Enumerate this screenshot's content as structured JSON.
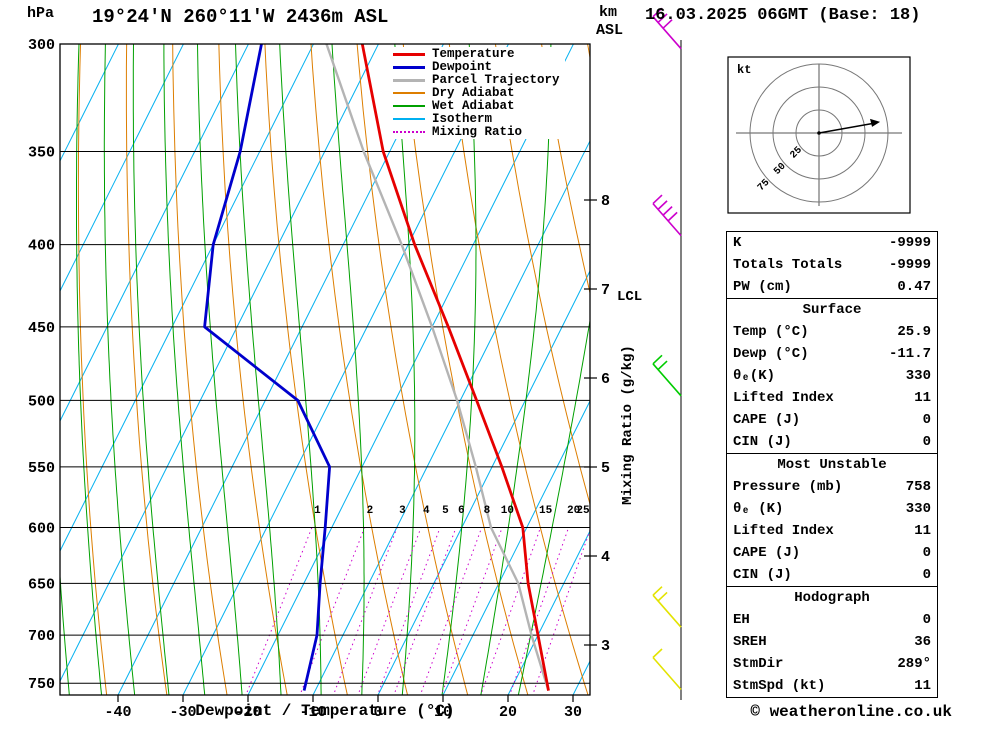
{
  "header": {
    "hpa_unit": "hPa",
    "title": "19°24'N 260°11'W 2436m ASL",
    "km_unit": "km",
    "asl_unit": "ASL",
    "datetime": "16.03.2025 06GMT (Base: 18)"
  },
  "axes": {
    "x_title": "Dewpoint / Temperature (°C)",
    "right_axis_title": "Mixing Ratio (g/kg)",
    "lcl_label": "LCL"
  },
  "legend": [
    {
      "label": "Temperature",
      "color_key": "temperature",
      "thick": 3,
      "dotted": false
    },
    {
      "label": "Dewpoint",
      "color_key": "dewpoint",
      "thick": 3,
      "dotted": false
    },
    {
      "label": "Parcel Trajectory",
      "color_key": "parcel",
      "thick": 3,
      "dotted": false
    },
    {
      "label": "Dry Adiabat",
      "color_key": "dry_adiabat",
      "thick": 2,
      "dotted": false
    },
    {
      "label": "Wet Adiabat",
      "color_key": "wet_adiabat",
      "thick": 2,
      "dotted": false
    },
    {
      "label": "Isotherm",
      "color_key": "isotherm",
      "thick": 2,
      "dotted": false
    },
    {
      "label": "Mixing Ratio",
      "color_key": "mixing_ratio",
      "thick": 2,
      "dotted": true
    }
  ],
  "colors": {
    "temperature": "#e60000",
    "dewpoint": "#0000cc",
    "parcel": "#b4b4b4",
    "dry_adiabat": "#dd7e00",
    "wet_adiabat": "#00a000",
    "isotherm": "#00b0f0",
    "mixing_ratio": "#cc00cc",
    "grid": "#000000"
  },
  "chart_data": {
    "type": "skewt-log-p sounding",
    "pressure_axis_hpa": [
      300,
      350,
      400,
      450,
      500,
      550,
      600,
      650,
      700,
      750
    ],
    "temp_axis_c": [
      -40,
      -30,
      -20,
      -10,
      0,
      10,
      20,
      30
    ],
    "km_axis_asl": [
      8,
      7,
      6,
      5,
      4,
      3
    ],
    "lcl_km": 7,
    "isotherm_step_c": 10,
    "dry_adiabat_step_k": 10,
    "wet_adiabat_values_c": [
      -40,
      -35,
      -30,
      -25,
      -20,
      -15,
      -10,
      -5,
      0,
      5,
      10,
      15,
      20,
      25,
      30
    ],
    "mixing_ratio_lines_gkg": [
      1,
      2,
      3,
      4,
      5,
      6,
      8,
      10,
      15,
      20,
      25
    ],
    "temperature_profile_p_t": [
      [
        758,
        25.9
      ],
      [
        700,
        20
      ],
      [
        650,
        14.5
      ],
      [
        600,
        9.4
      ],
      [
        550,
        1.5
      ],
      [
        500,
        -7.5
      ],
      [
        450,
        -17.5
      ],
      [
        400,
        -29
      ],
      [
        350,
        -41
      ],
      [
        300,
        -52.5
      ]
    ],
    "dewpoint_profile_p_t": [
      [
        758,
        -11.7
      ],
      [
        700,
        -14
      ],
      [
        650,
        -17.5
      ],
      [
        600,
        -21
      ],
      [
        550,
        -25
      ],
      [
        500,
        -35
      ],
      [
        450,
        -55
      ],
      [
        400,
        -60
      ],
      [
        350,
        -63
      ],
      [
        300,
        -68
      ]
    ],
    "parcel_profile_p_t": [
      [
        758,
        25.9
      ],
      [
        700,
        19
      ],
      [
        650,
        13
      ],
      [
        600,
        4.5
      ],
      [
        550,
        -2.5
      ],
      [
        500,
        -10.5
      ],
      [
        450,
        -20
      ],
      [
        400,
        -31
      ],
      [
        350,
        -44
      ],
      [
        300,
        -58
      ]
    ],
    "wind_barbs": [
      {
        "km": 9.7,
        "color": "#cc00cc",
        "barbs": 3
      },
      {
        "km": 7.6,
        "color": "#cc00cc",
        "barbs": 4
      },
      {
        "km": 5.8,
        "color": "#00cc00",
        "barbs": 2
      },
      {
        "km": 3.2,
        "color": "#e3e300",
        "barbs": 2
      },
      {
        "km": 2.5,
        "color": "#e3e300",
        "barbs": 1
      }
    ],
    "hodograph": {
      "unit": "kt",
      "rings_kt": [
        25,
        50,
        75
      ],
      "trace_kt": [
        [
          0,
          0
        ],
        [
          62,
          11
        ]
      ]
    }
  },
  "panel": {
    "table_sections": [
      {
        "header": "",
        "rows": [
          [
            "K",
            "-9999"
          ],
          [
            "Totals Totals",
            "-9999"
          ],
          [
            "PW (cm)",
            "0.47"
          ]
        ]
      },
      {
        "header": "Surface",
        "rows": [
          [
            "Temp (°C)",
            "25.9"
          ],
          [
            "Dewp (°C)",
            "-11.7"
          ],
          [
            "θₑ(K)",
            "330"
          ],
          [
            "Lifted Index",
            "11"
          ],
          [
            "CAPE (J)",
            "0"
          ],
          [
            "CIN (J)",
            "0"
          ]
        ]
      },
      {
        "header": "Most Unstable",
        "rows": [
          [
            "Pressure (mb)",
            "758"
          ],
          [
            "θₑ (K)",
            "330"
          ],
          [
            "Lifted Index",
            "11"
          ],
          [
            "CAPE (J)",
            "0"
          ],
          [
            "CIN (J)",
            "0"
          ]
        ]
      },
      {
        "header": "Hodograph",
        "rows": [
          [
            "EH",
            "0"
          ],
          [
            "SREH",
            "36"
          ],
          [
            "StmDir",
            "289°"
          ],
          [
            "StmSpd (kt)",
            "11"
          ]
        ]
      }
    ]
  },
  "footer": {
    "copyright": "© weatheronline.co.uk"
  }
}
